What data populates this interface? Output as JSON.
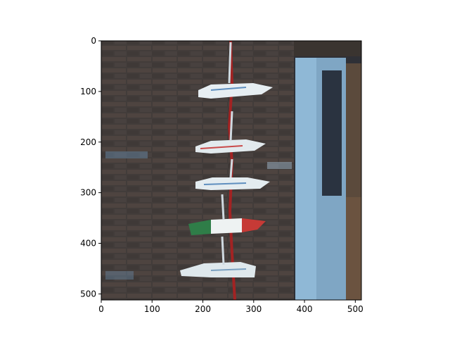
{
  "figure": {
    "image_subject": "sneakers hanging on a red rope against a brick wall next to a blue door frame",
    "x_axis": {
      "ticks": [
        "0",
        "100",
        "200",
        "300",
        "400",
        "500"
      ],
      "values": [
        0,
        100,
        200,
        300,
        400,
        500
      ],
      "range": [
        0,
        512
      ]
    },
    "y_axis": {
      "ticks": [
        "0",
        "100",
        "200",
        "300",
        "400",
        "500"
      ],
      "values": [
        0,
        100,
        200,
        300,
        400,
        500
      ],
      "range": [
        0,
        512
      ],
      "inverted": true
    },
    "colors": {
      "brick_dark": "#3d3a3a",
      "brick_mid": "#5a4e49",
      "mortar": "#6f6a66",
      "door_blue": "#8fb8d6",
      "door_dark": "#2a3340",
      "rope_red": "#a22323",
      "shoe_white": "#e7eef2",
      "flag_green": "#2f7d48",
      "flag_red": "#c63a36"
    }
  }
}
